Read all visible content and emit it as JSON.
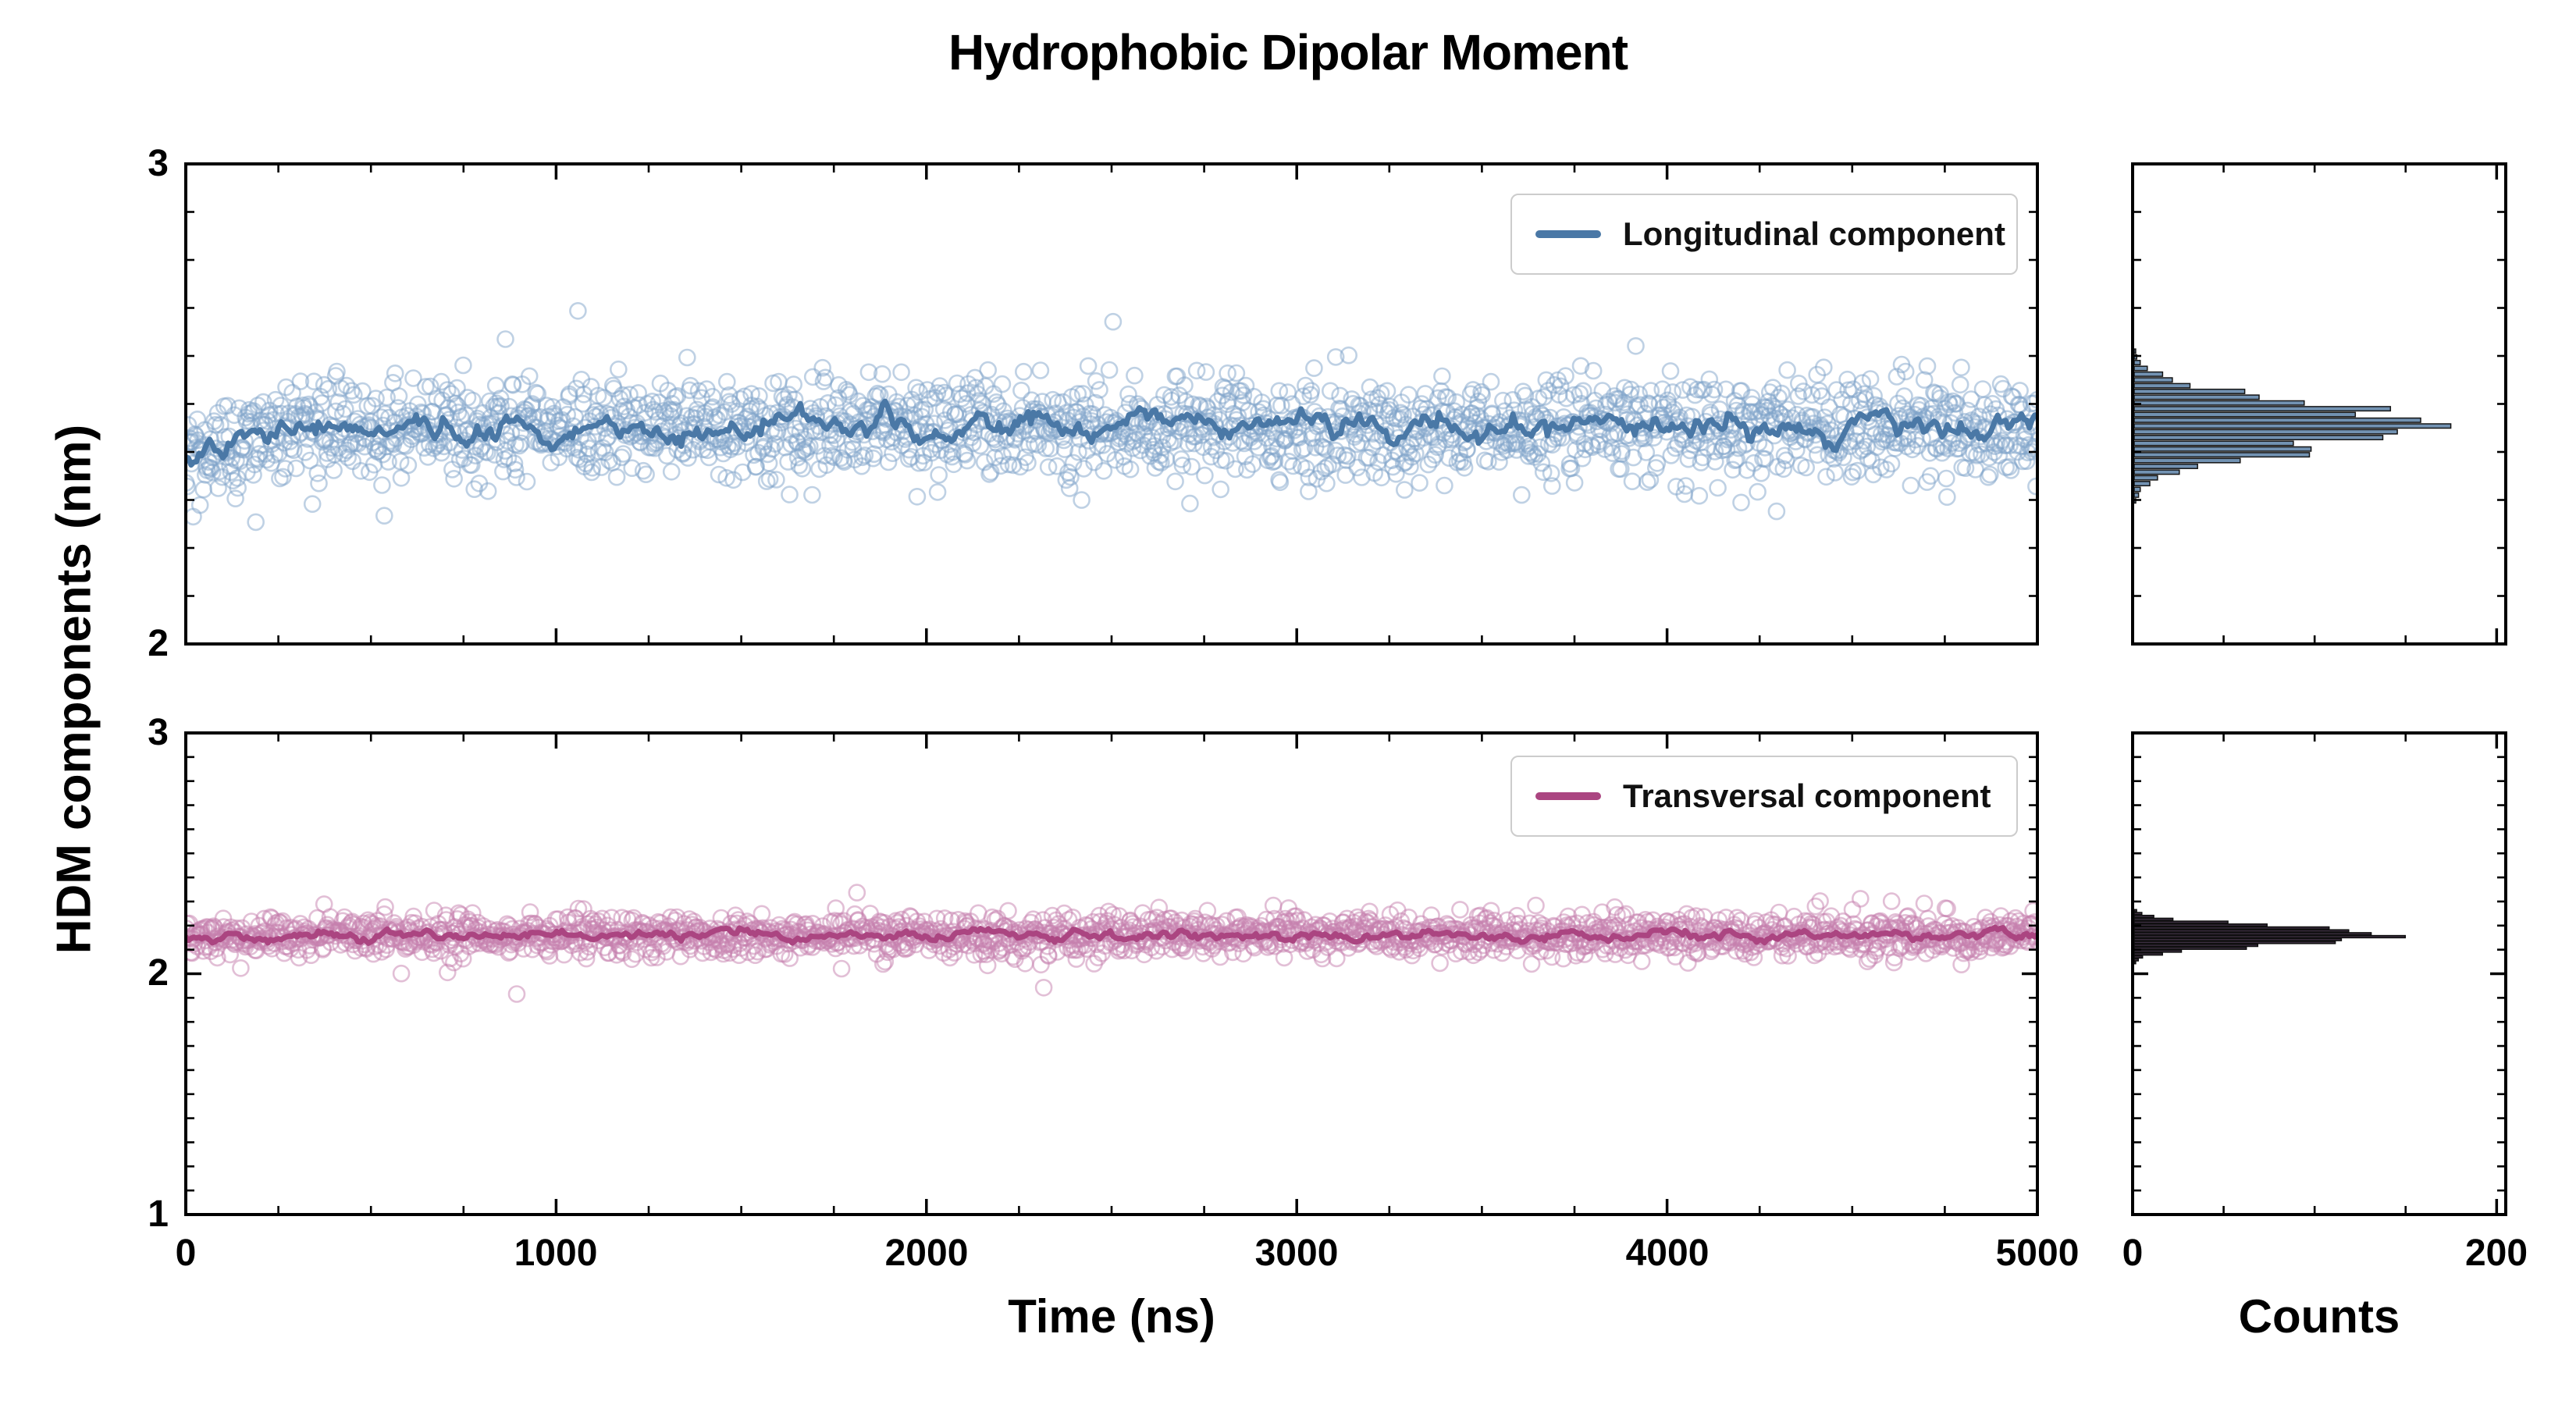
{
  "title": "Hydrophobic Dipolar Moment",
  "xlabel": "Time (ns)",
  "ylabel": "HDM components (nm)",
  "counts_xlabel": "Counts",
  "chart_data": [
    {
      "id": "longitudinal",
      "type": "scatter",
      "legend_label": "Longitudinal component",
      "x_range": [
        0,
        5000
      ],
      "y_range": [
        2,
        3
      ],
      "x_ticks": [
        0,
        1000,
        2000,
        3000,
        4000,
        5000
      ],
      "y_ticks": [
        2,
        3
      ],
      "x_minor_step": 250,
      "y_minor_step": 0.1,
      "scatter": {
        "n": 2000,
        "mean": 2.452,
        "std": 0.053,
        "start_dip": 0.08,
        "start_tau": 130,
        "outlier_prob": 0.015,
        "outlier_scale": 2.2,
        "color": "#7fa3c9",
        "opacity": 0.5,
        "radius": 10,
        "stroke_width": 2.6,
        "seed": 101
      },
      "trend": {
        "points": 700,
        "std": 0.016,
        "smooth": 0.82,
        "color": "#4a78a6",
        "width": 7,
        "seed": 202
      },
      "histogram": {
        "x_range": [
          0,
          205
        ],
        "x_ticks": [
          0,
          200
        ],
        "x_minor_step": 50,
        "center": 2.452,
        "sigma": 0.048,
        "peak": 168,
        "bin_width": 0.012,
        "range": [
          2.22,
          2.68
        ],
        "noise": 0.12,
        "color": "#7292b2",
        "edge": "#141414",
        "seed": 303
      }
    },
    {
      "id": "transversal",
      "type": "scatter",
      "legend_label": "Transversal component",
      "x_range": [
        0,
        5000
      ],
      "y_range": [
        1,
        3
      ],
      "x_ticks": [
        0,
        1000,
        2000,
        3000,
        4000,
        5000
      ],
      "y_ticks": [
        1,
        2,
        3
      ],
      "x_minor_step": 250,
      "y_minor_step": 0.1,
      "scatter": {
        "n": 2000,
        "mean": 2.16,
        "std": 0.042,
        "start_dip": 0.02,
        "start_tau": 120,
        "outlier_prob": 0.012,
        "outlier_scale": 2.2,
        "color": "#c57fae",
        "opacity": 0.5,
        "radius": 10,
        "stroke_width": 2.6,
        "seed": 404
      },
      "trend": {
        "points": 700,
        "std": 0.013,
        "smooth": 0.82,
        "color": "#ab4581",
        "width": 7,
        "seed": 505
      },
      "histogram": {
        "x_range": [
          0,
          205
        ],
        "x_ticks": [
          0,
          200
        ],
        "x_minor_step": 50,
        "center": 2.158,
        "sigma": 0.034,
        "peak": 162,
        "bin_width": 0.012,
        "range": [
          1.98,
          2.34
        ],
        "noise": 0.12,
        "color": "#3c2f40",
        "edge": "#0e0e0e",
        "seed": 606
      }
    }
  ]
}
